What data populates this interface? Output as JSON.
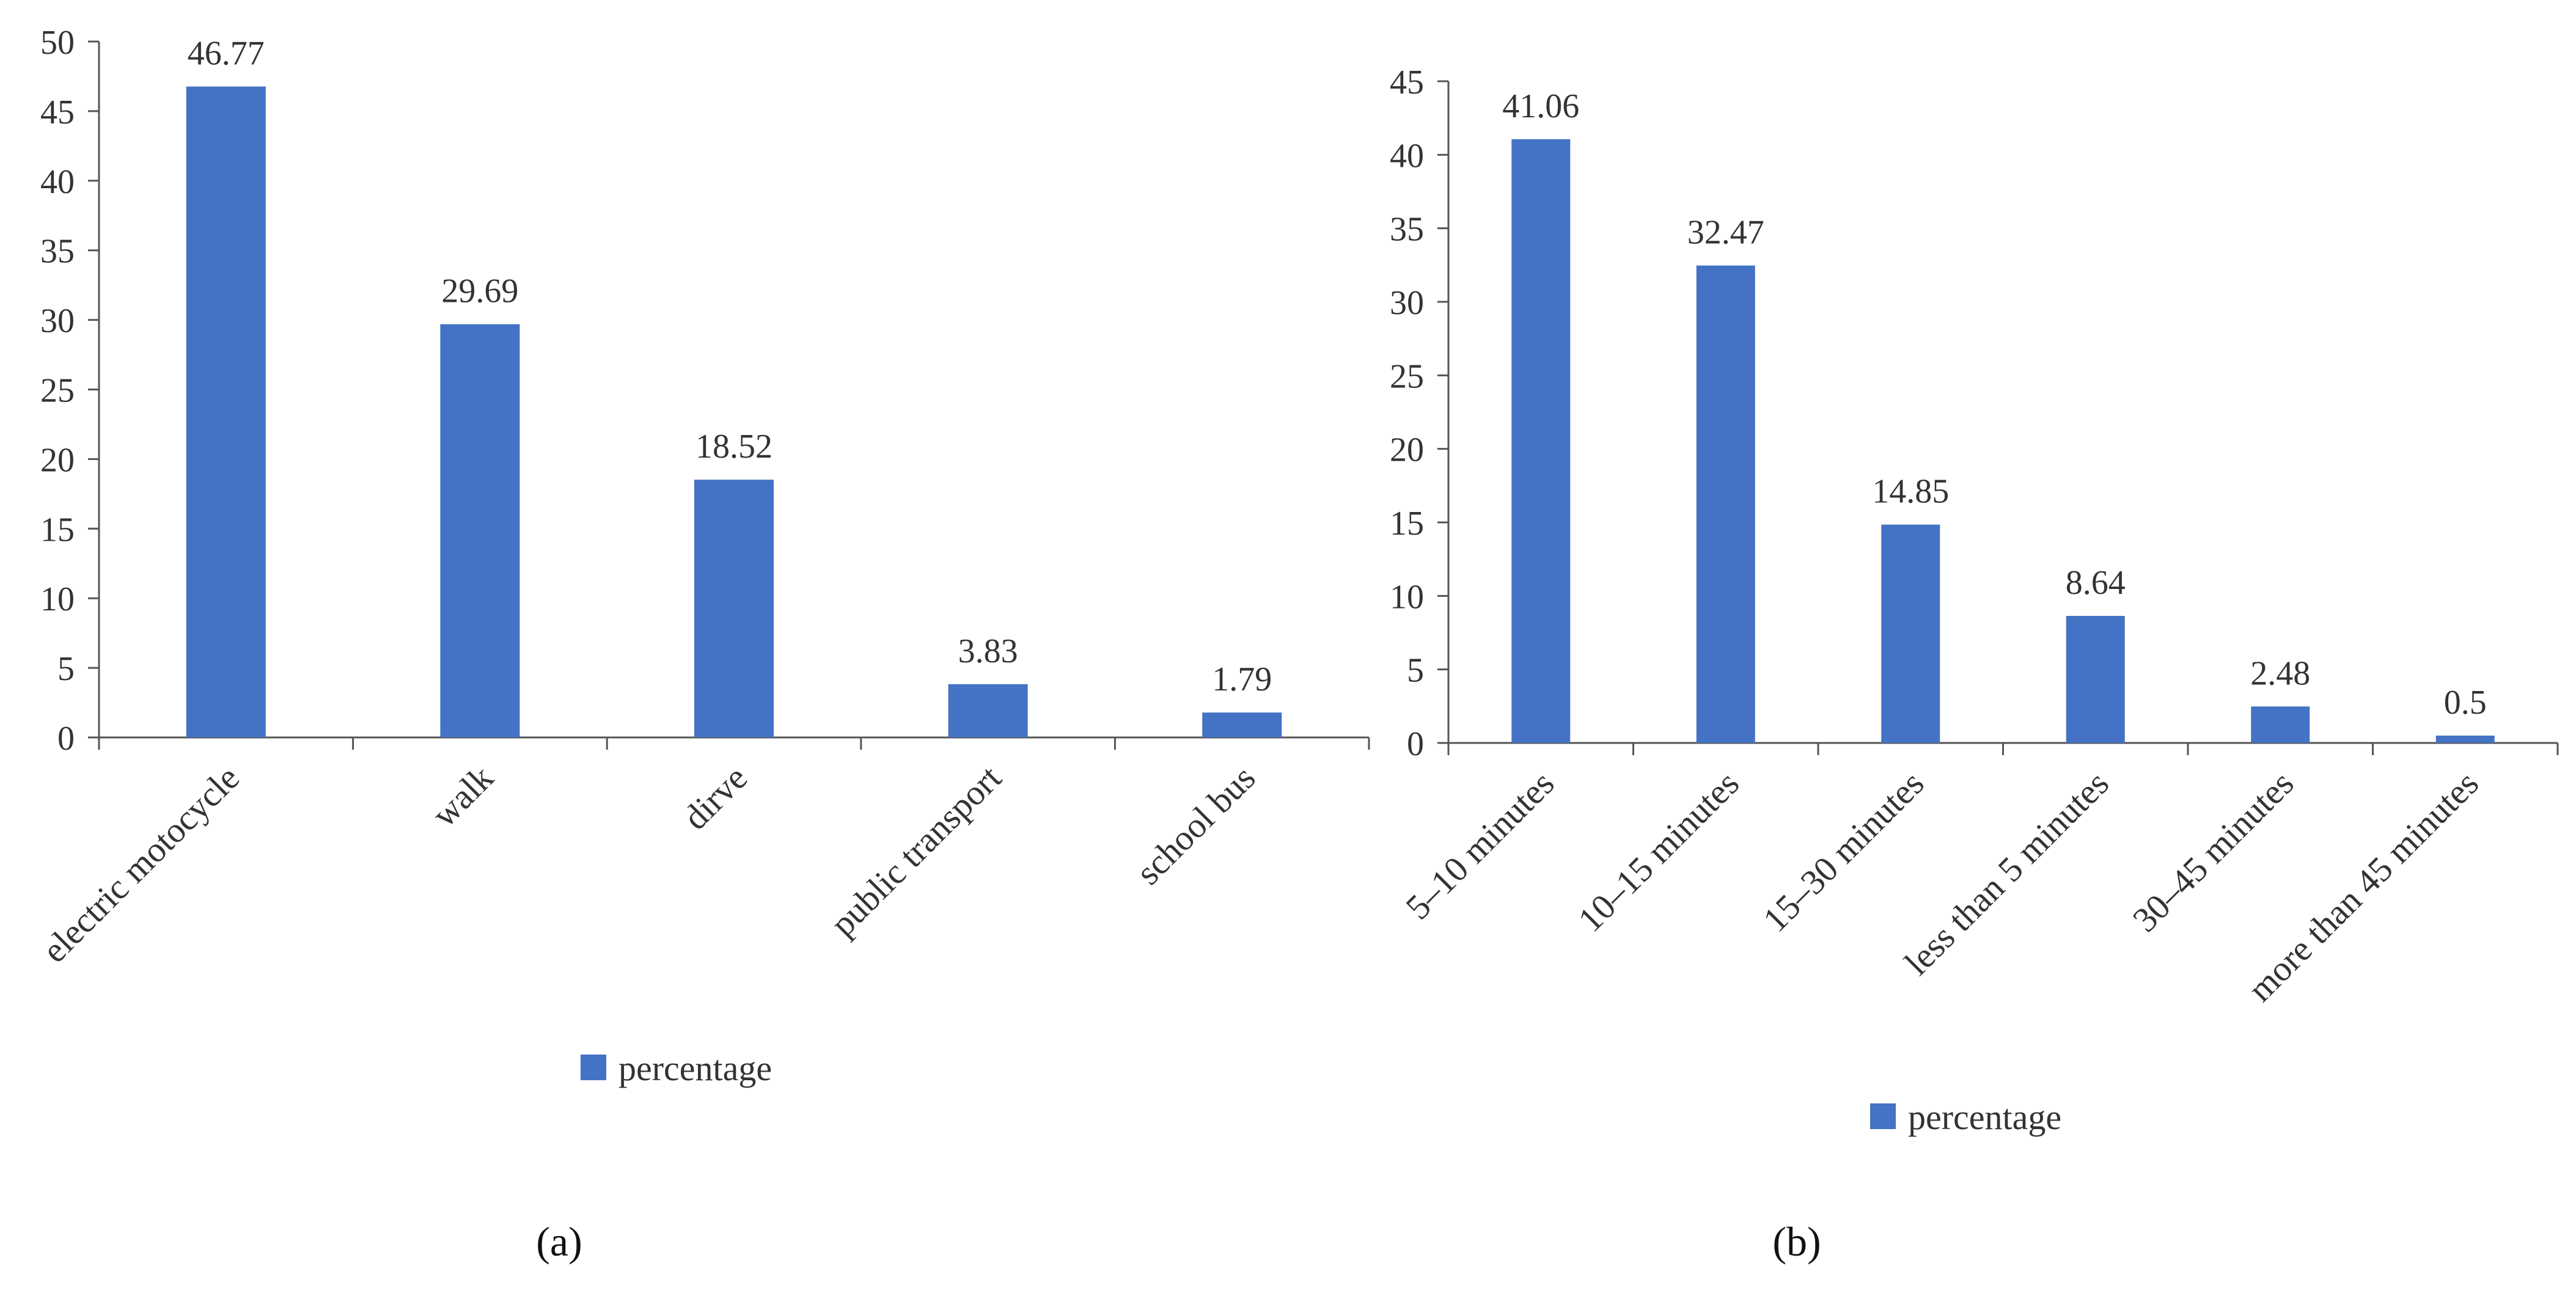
{
  "chart_data": [
    {
      "type": "bar",
      "panel": "(a)",
      "categories": [
        "electric motocycle",
        "walk",
        "dirve",
        "public transport",
        "school bus"
      ],
      "series": [
        {
          "name": "percentage",
          "values": [
            46.77,
            29.69,
            18.52,
            3.83,
            1.79
          ]
        }
      ],
      "data_labels": [
        "46.77",
        "29.69",
        "18.52",
        "3.83",
        "1.79"
      ],
      "yticks": [
        0,
        5,
        10,
        15,
        20,
        25,
        30,
        35,
        40,
        45,
        50
      ],
      "ylim": [
        0,
        50
      ],
      "legend": [
        "percentage"
      ],
      "legend_position": "bottom",
      "bar_color": "#4472C4",
      "title": "",
      "xlabel": "",
      "ylabel": ""
    },
    {
      "type": "bar",
      "panel": "(b)",
      "categories": [
        "5–10 minutes",
        "10–15 minutes",
        "15–30 minutes",
        "less than 5 minutes",
        "30–45 minutes",
        "more than 45 minutes"
      ],
      "series": [
        {
          "name": "percentage",
          "values": [
            41.06,
            32.47,
            14.85,
            8.64,
            2.48,
            0.5
          ]
        }
      ],
      "data_labels": [
        "41.06",
        "32.47",
        "14.85",
        "8.64",
        "2.48",
        "0.5"
      ],
      "yticks": [
        0,
        5,
        10,
        15,
        20,
        25,
        30,
        35,
        40,
        45
      ],
      "ylim": [
        0,
        45
      ],
      "legend": [
        "percentage"
      ],
      "legend_position": "bottom",
      "bar_color": "#4472C4",
      "title": "",
      "xlabel": "",
      "ylabel": ""
    }
  ]
}
